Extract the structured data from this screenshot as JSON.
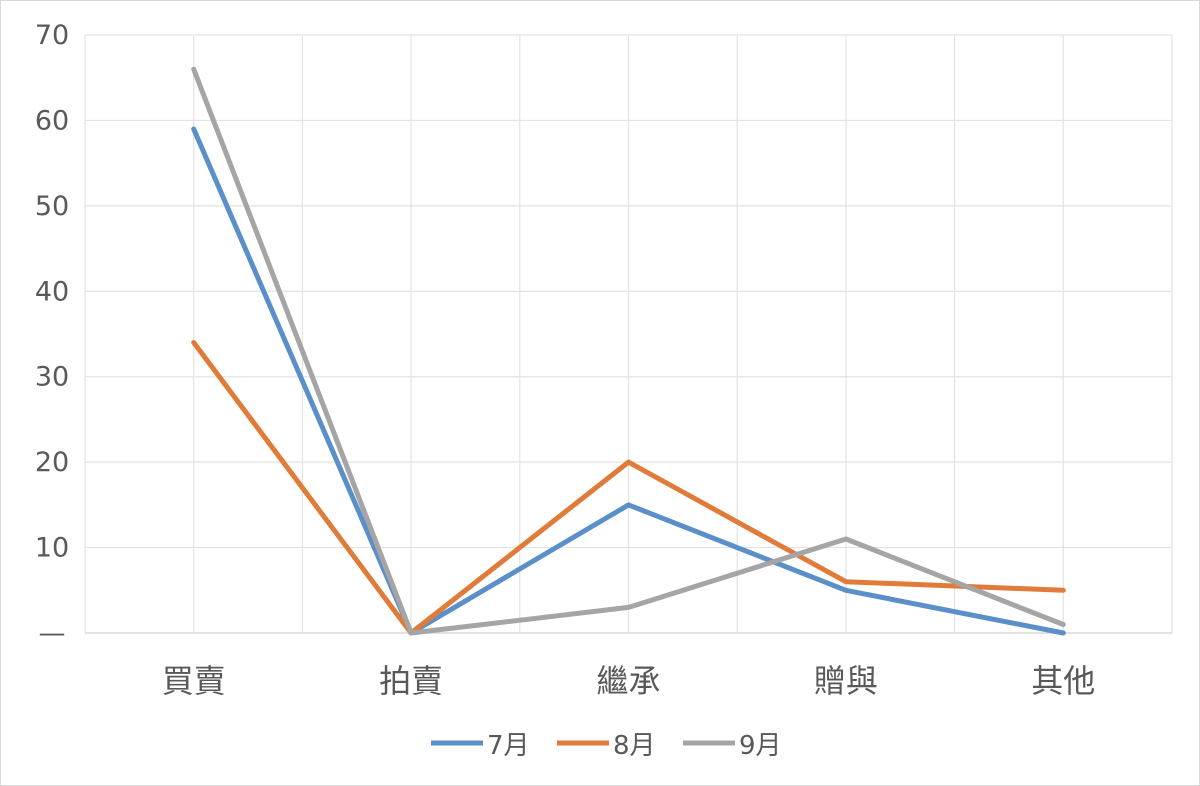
{
  "chart_data": {
    "type": "line",
    "title": "",
    "xlabel": "",
    "ylabel": "",
    "categories": [
      "買賣",
      "拍賣",
      "繼承",
      "贈與",
      "其他"
    ],
    "y_ticks": [
      "—",
      "10",
      "20",
      "30",
      "40",
      "50",
      "60",
      "70"
    ],
    "ylim": [
      0,
      70
    ],
    "grid": true,
    "legend_position": "bottom",
    "series": [
      {
        "name": "7月",
        "color": "#5b8fc9",
        "values": [
          59,
          0,
          15,
          5,
          0
        ]
      },
      {
        "name": "8月",
        "color": "#e07b39",
        "values": [
          34,
          0,
          20,
          6,
          5
        ]
      },
      {
        "name": "9月",
        "color": "#a5a5a5",
        "values": [
          66,
          0,
          3,
          11,
          1
        ]
      }
    ]
  }
}
